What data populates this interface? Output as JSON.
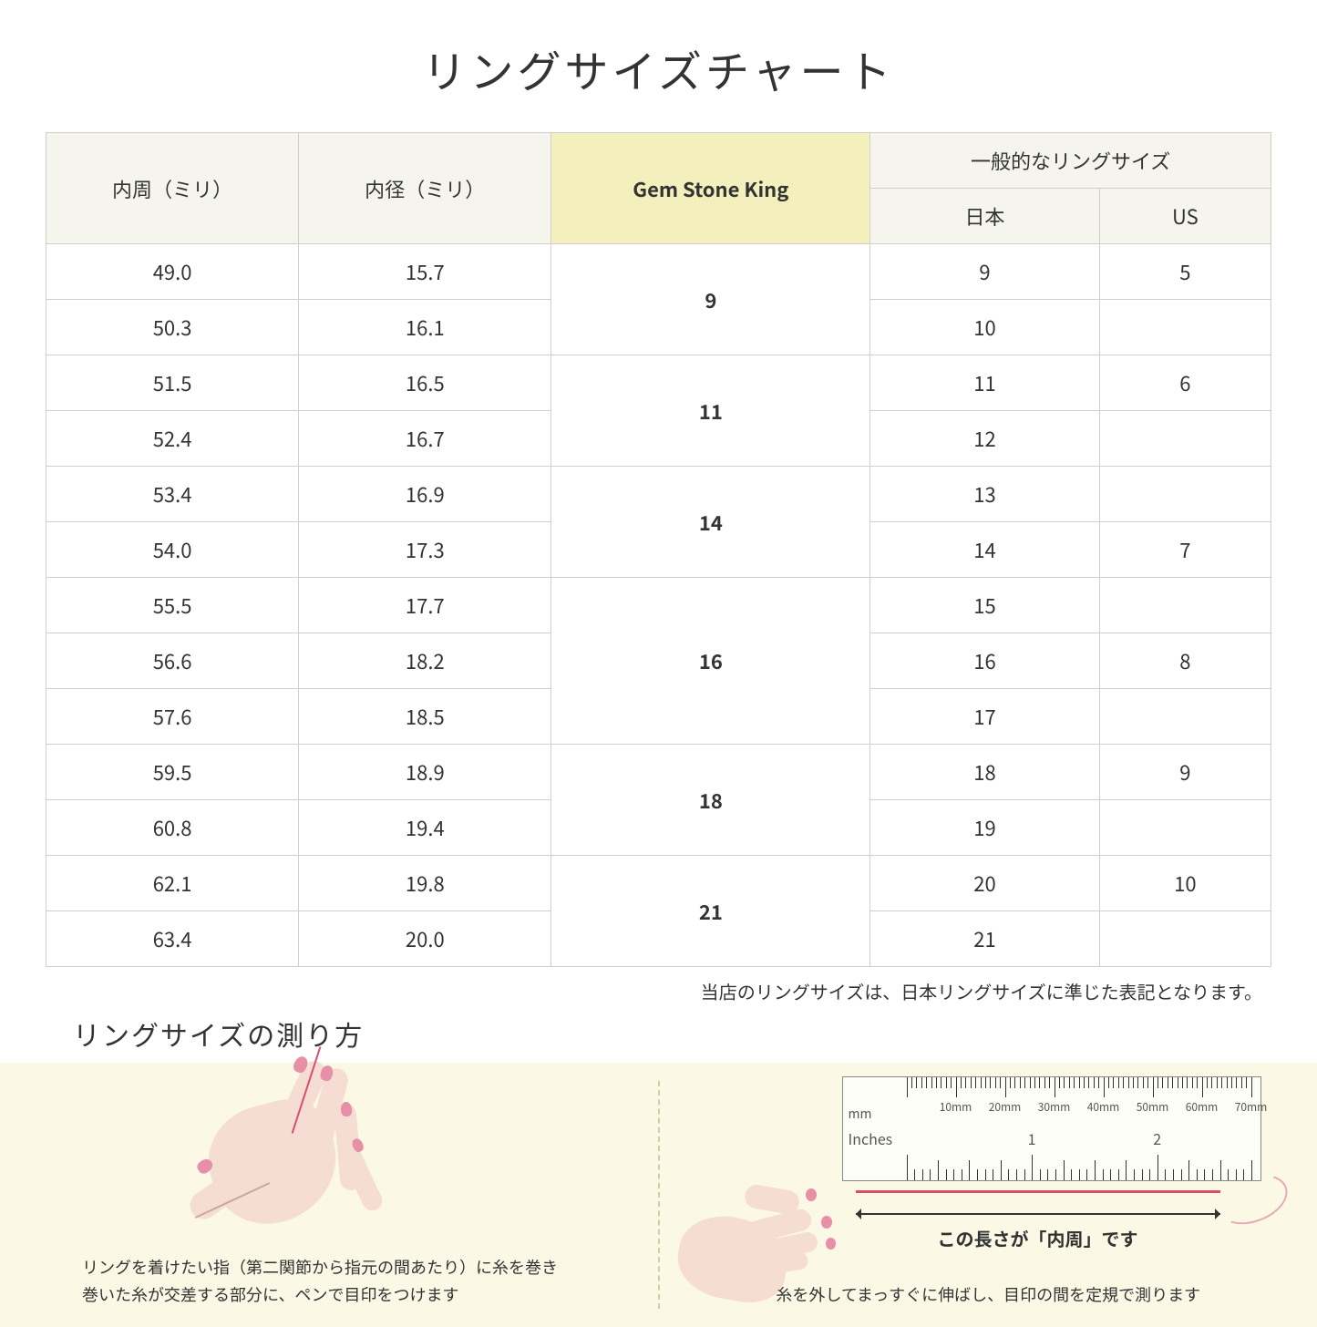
{
  "title": "リングサイズチャート",
  "headers": {
    "circumference": "内周（ミリ）",
    "diameter": "内径（ミリ）",
    "gsk": "Gem Stone King",
    "general": "一般的なリングサイズ",
    "japan": "日本",
    "us": "US"
  },
  "rows": [
    {
      "c": "49.0",
      "d": "15.7",
      "jp": "9",
      "us": "5"
    },
    {
      "c": "50.3",
      "d": "16.1",
      "jp": "10",
      "us": ""
    },
    {
      "c": "51.5",
      "d": "16.5",
      "jp": "11",
      "us": "6"
    },
    {
      "c": "52.4",
      "d": "16.7",
      "jp": "12",
      "us": ""
    },
    {
      "c": "53.4",
      "d": "16.9",
      "jp": "13",
      "us": ""
    },
    {
      "c": "54.0",
      "d": "17.3",
      "jp": "14",
      "us": "7"
    },
    {
      "c": "55.5",
      "d": "17.7",
      "jp": "15",
      "us": ""
    },
    {
      "c": "56.6",
      "d": "18.2",
      "jp": "16",
      "us": "8"
    },
    {
      "c": "57.6",
      "d": "18.5",
      "jp": "17",
      "us": ""
    },
    {
      "c": "59.5",
      "d": "18.9",
      "jp": "18",
      "us": "9"
    },
    {
      "c": "60.8",
      "d": "19.4",
      "jp": "19",
      "us": ""
    },
    {
      "c": "62.1",
      "d": "19.8",
      "jp": "20",
      "us": "10"
    },
    {
      "c": "63.4",
      "d": "20.0",
      "jp": "21",
      "us": ""
    }
  ],
  "gsk_groups": [
    {
      "label": "9",
      "span": 2
    },
    {
      "label": "11",
      "span": 2
    },
    {
      "label": "14",
      "span": 2
    },
    {
      "label": "16",
      "span": 3
    },
    {
      "label": "18",
      "span": 2
    },
    {
      "label": "21",
      "span": 2
    }
  ],
  "note": "当店のリングサイズは、日本リングサイズに準じた表記となります。",
  "howto_title": "リングサイズの測り方",
  "step1": "リングを着けたい指（第二関節から指元の間あたり）に糸を巻き\n巻いた糸が交差する部分に、ペンで目印をつけます",
  "step2": "糸を外してまっすぐに伸ばし、目印の間を定規で測ります",
  "arrow_label": "この長さが「内周」です",
  "ruler": {
    "mm_label": "mm",
    "in_label": "Inches",
    "mm_ticks": [
      "10mm",
      "20mm",
      "30mm",
      "40mm",
      "50mm",
      "60mm",
      "70mm"
    ],
    "in_ticks": [
      "1",
      "2"
    ]
  }
}
